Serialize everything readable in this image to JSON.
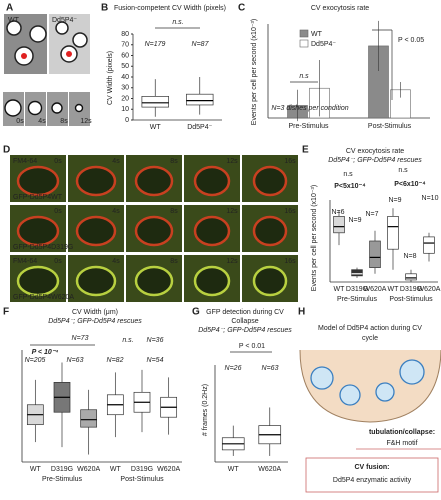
{
  "panels": {
    "a": {
      "label": "A",
      "wt": "WT",
      "mutant": "Dd5P4⁻",
      "times": [
        "0s",
        "4s",
        "8s",
        "12s"
      ]
    },
    "b": {
      "label": "B",
      "title": "Fusion-competent CV Width (pixels)",
      "y_label": "CV Width (pixels)",
      "ns": "n.s.",
      "n_labels": [
        "N=179",
        "N=87"
      ],
      "categories": [
        "WT",
        "Dd5P4⁻"
      ],
      "ylim": [
        0,
        80
      ],
      "yticks": [
        0,
        10,
        20,
        30,
        40,
        50,
        60,
        70,
        80
      ],
      "colors": [
        "#ffffff",
        "#ffffff"
      ],
      "boxes": [
        {
          "low": 3,
          "q1": 12,
          "median": 16,
          "q3": 22,
          "high": 38
        },
        {
          "low": 5,
          "q1": 14,
          "median": 18,
          "q3": 24,
          "high": 40
        }
      ]
    },
    "c": {
      "label": "C",
      "title": "CV exocytosis rate",
      "y_label": "Events per cell per second (x10⁻³)",
      "ns": "n.s",
      "p_value": "P < 0.05",
      "note": "N=3 dishes per condition",
      "categories": [
        "Pre-Stimulus",
        "Post-Stimulus"
      ],
      "ylim": [
        0,
        6
      ],
      "series": [
        {
          "name": "WT",
          "color": "#8a8a8a",
          "values": [
            0.8,
            4.6
          ],
          "errors": [
            1.0,
            1.6
          ]
        },
        {
          "name": "Dd5P4⁻",
          "color": "#ffffff",
          "values": [
            1.9,
            1.8
          ],
          "errors": [
            1.8,
            0.5
          ]
        }
      ]
    },
    "d": {
      "label": "D",
      "fm": "FM4-64",
      "rows": [
        "GFP-Dd5P4WT",
        "GFP-Dd5P4D319G",
        "GFP-Dd5P4W620A"
      ],
      "times": [
        "0s",
        "4s",
        "8s",
        "12s",
        "16s"
      ]
    },
    "e": {
      "label": "E",
      "title": "CV exocytosis rate",
      "subtitle": "Dd5P4⁻; GFP-Dd5P4 rescues",
      "y_label": "Events per cell per second (x10⁻³)",
      "annotations": [
        "n.s",
        "P<5x10⁻⁴",
        "N=6",
        "N=9",
        "N=7",
        "n.s",
        "P<6x10⁻⁴",
        "N=9",
        "N=8",
        "N=10"
      ],
      "categories": [
        "WT",
        "D319G",
        "W620A",
        "WT",
        "D319G",
        "W620A"
      ],
      "groups": [
        "Pre-Stimulus",
        "Post-Stimulus"
      ],
      "ylim": [
        0,
        2
      ],
      "colors": [
        "#d9d9d9",
        "#333333",
        "#999999",
        "#ffffff",
        "#ffffff",
        "#ffffff"
      ],
      "boxes": [
        {
          "low": 0.9,
          "q1": 1.2,
          "median": 1.35,
          "q3": 1.6,
          "high": 1.75
        },
        {
          "low": 0.1,
          "q1": 0.15,
          "median": 0.2,
          "q3": 0.3,
          "high": 0.35
        },
        {
          "low": 0.2,
          "q1": 0.35,
          "median": 0.6,
          "q3": 1.0,
          "high": 1.25
        },
        {
          "low": 0.3,
          "q1": 0.8,
          "median": 1.35,
          "q3": 1.6,
          "high": 1.8
        },
        {
          "low": 0,
          "q1": 0.05,
          "median": 0.1,
          "q3": 0.2,
          "high": 0.3
        },
        {
          "low": 0.5,
          "q1": 0.7,
          "median": 0.95,
          "q3": 1.1,
          "high": 1.2
        }
      ]
    },
    "f": {
      "label": "F",
      "title": "CV Width (μm)",
      "subtitle": "Dd5P4⁻; GFP-Dd5P4 rescues",
      "annotations": [
        "P < 10⁻⁴",
        "N=73",
        "N=205",
        "N=63",
        "n.s.",
        "N=36",
        "N=82",
        "N=54"
      ],
      "categories": [
        "WT",
        "D319G",
        "W620A",
        "WT",
        "D319G",
        "W620A"
      ],
      "groups": [
        "Pre-Stimulus",
        "Post-Stimulus"
      ],
      "ylim": [
        0,
        4.5
      ],
      "colors": [
        "#d9d9d9",
        "#777777",
        "#aaaaaa",
        "#ffffff",
        "#ffffff",
        "#ffffff"
      ],
      "boxes": [
        {
          "low": 0.8,
          "q1": 1.5,
          "median": 1.9,
          "q3": 2.3,
          "high": 3.3
        },
        {
          "low": 0.6,
          "q1": 2.0,
          "median": 2.6,
          "q3": 3.2,
          "high": 4.0
        },
        {
          "low": 0.3,
          "q1": 1.4,
          "median": 1.7,
          "q3": 2.1,
          "high": 2.9
        },
        {
          "low": 1.0,
          "q1": 1.9,
          "median": 2.3,
          "q3": 2.7,
          "high": 3.6
        },
        {
          "low": 1.2,
          "q1": 2.0,
          "median": 2.4,
          "q3": 2.8,
          "high": 3.7
        },
        {
          "low": 1.1,
          "q1": 1.8,
          "median": 2.2,
          "q3": 2.6,
          "high": 3.4
        }
      ]
    },
    "g": {
      "label": "G",
      "title": [
        "GFP detection during CV",
        "Collapse"
      ],
      "subtitle": "Dd5P4⁻; GFP-Dd5P4 rescues",
      "y_label": "# frames (0.2Hz)",
      "p_value": "P < 0.01",
      "n_labels": [
        "N=26",
        "N=63"
      ],
      "categories": [
        "WT",
        "W620A"
      ],
      "ylim": [
        0,
        16
      ],
      "colors": [
        "#ffffff",
        "#ffffff"
      ],
      "boxes": [
        {
          "low": 1,
          "q1": 2,
          "median": 3,
          "q3": 4,
          "high": 6
        },
        {
          "low": 1,
          "q1": 3,
          "median": 4.5,
          "q3": 6,
          "high": 9
        }
      ]
    },
    "h": {
      "label": "H",
      "title": [
        "Model of Dd5P4 action during CV",
        "cycle"
      ],
      "box1": [
        "tubulation/collapse:",
        "F&H motif"
      ],
      "box2": [
        "CV fusion:",
        "Dd5P4 enzymatic activity"
      ]
    }
  }
}
